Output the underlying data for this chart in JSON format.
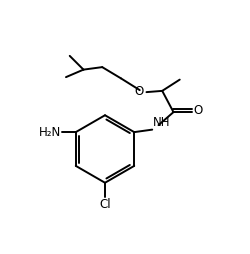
{
  "bg_color": "#ffffff",
  "line_color": "#000000",
  "line_width": 1.4,
  "font_size": 8.5,
  "figsize": [
    2.5,
    2.54
  ],
  "dpi": 100,
  "xlim": [
    0,
    10
  ],
  "ylim": [
    0,
    10.16
  ]
}
